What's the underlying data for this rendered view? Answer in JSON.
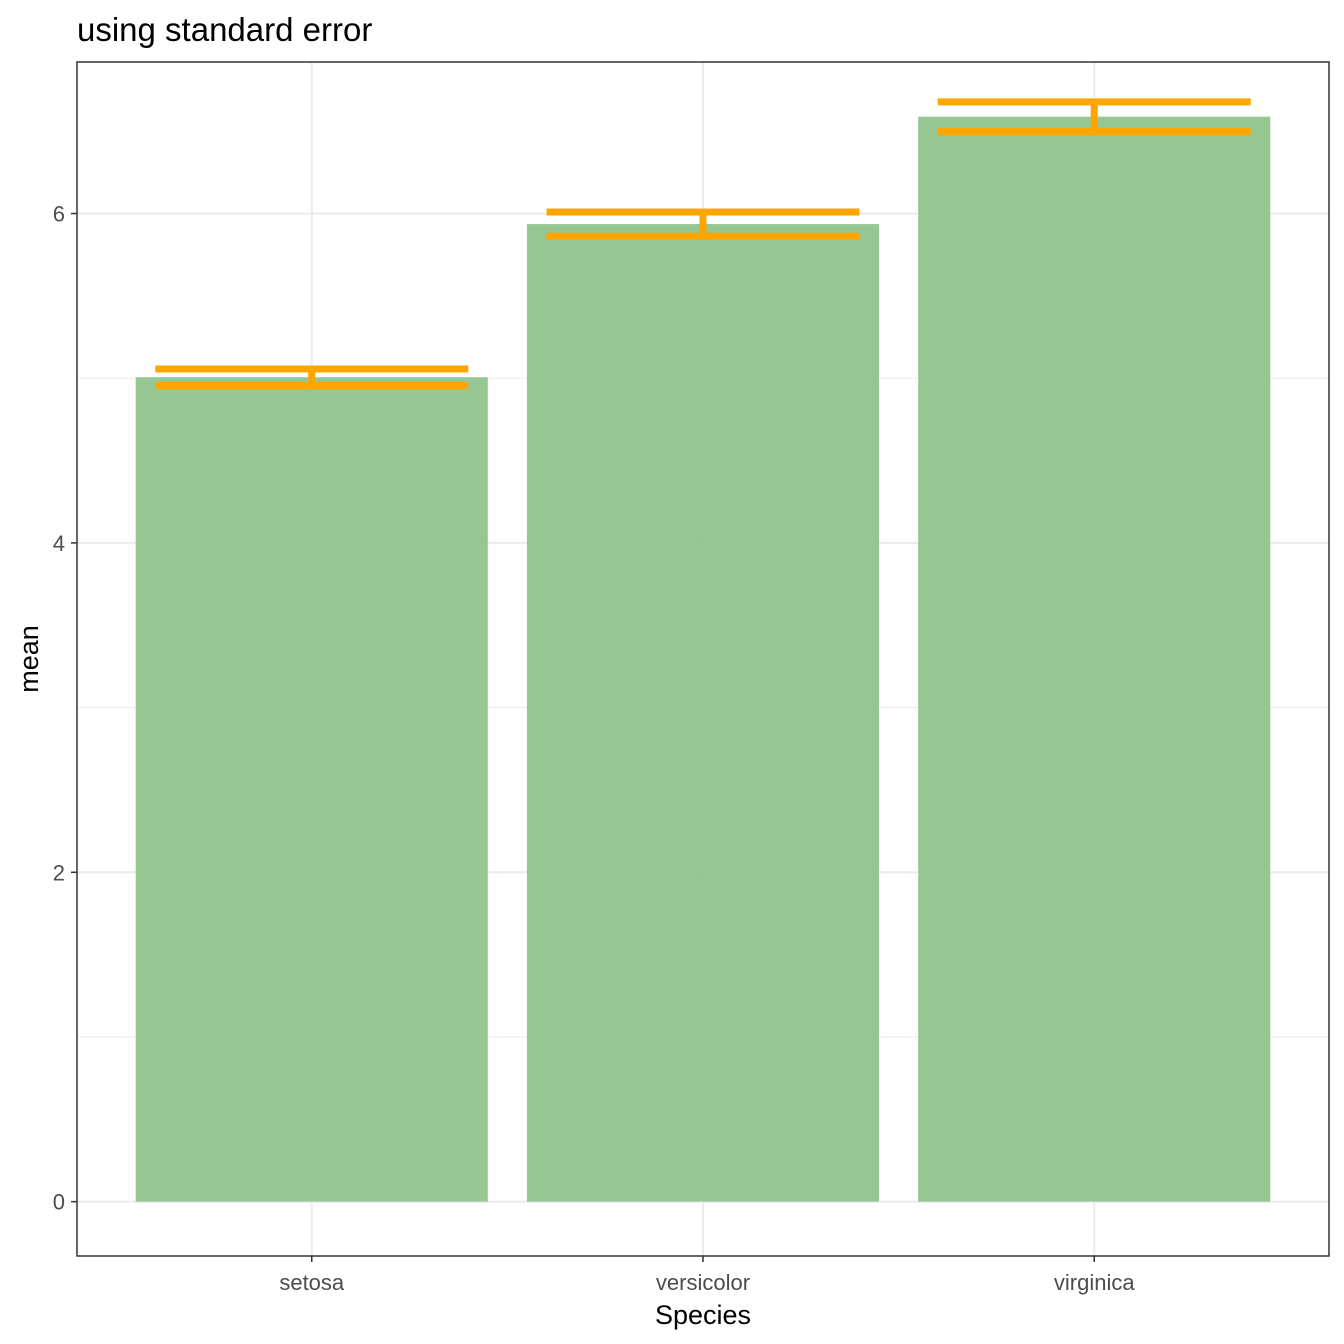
{
  "chart_data": {
    "type": "bar",
    "title": "using standard error",
    "xlabel": "Species",
    "ylabel": "mean",
    "categories": [
      "setosa",
      "versicolor",
      "virginica"
    ],
    "values": [
      5.006,
      5.936,
      6.588
    ],
    "error_bars": {
      "kind": "standard error",
      "lower": [
        4.956,
        5.863,
        6.498
      ],
      "upper": [
        5.056,
        6.009,
        6.678
      ]
    },
    "ylim": [
      -0.33,
      6.92
    ],
    "yticks": [
      0,
      2,
      4,
      6
    ],
    "ytick_labels": [
      "0",
      "2",
      "4",
      "6"
    ],
    "grid": true,
    "legend": "none",
    "colors": {
      "bar": "#90c48c",
      "error_bar": "#ffa500",
      "grid": "#ebebeb",
      "panel_border": "#333333",
      "tick_text": "#4d4d4d"
    }
  }
}
